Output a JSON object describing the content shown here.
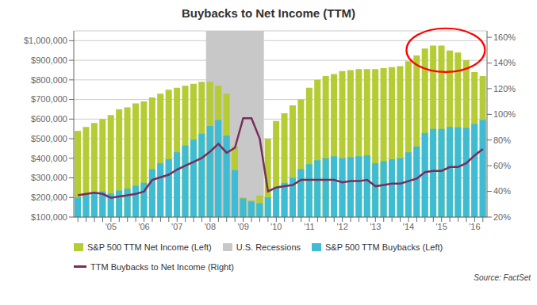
{
  "chart_data": {
    "type": "bar",
    "title": "Buybacks to Net Income (TTM)",
    "source": "Source: FactSet",
    "categories": [
      null,
      null,
      null,
      null,
      "'05",
      null,
      null,
      null,
      "'06",
      null,
      null,
      null,
      "'07",
      null,
      null,
      null,
      "'08",
      null,
      null,
      null,
      "'09",
      null,
      null,
      null,
      "'10",
      null,
      null,
      null,
      "'11",
      null,
      null,
      null,
      "'12",
      null,
      null,
      null,
      "'13",
      null,
      null,
      null,
      "'14",
      null,
      null,
      null,
      "'15",
      null,
      null,
      null,
      "'16",
      null
    ],
    "series": [
      {
        "name": "S&P 500 TTM Net Income (Left)",
        "type": "bar",
        "color": "#b5cc34",
        "values": [
          540000,
          560000,
          580000,
          600000,
          620000,
          650000,
          660000,
          680000,
          690000,
          710000,
          730000,
          750000,
          760000,
          770000,
          780000,
          790000,
          790000,
          770000,
          730000,
          460000,
          200000,
          185000,
          210000,
          500000,
          590000,
          630000,
          670000,
          700000,
          760000,
          800000,
          820000,
          830000,
          845000,
          850000,
          855000,
          855000,
          855000,
          860000,
          865000,
          870000,
          895000,
          925000,
          960000,
          975000,
          975000,
          950000,
          940000,
          900000,
          840000,
          820000
        ]
      },
      {
        "name": "S&P 500 TTM Buybacks (Left)",
        "type": "bar",
        "color": "#3dbcd4",
        "values": [
          200000,
          215000,
          225000,
          230000,
          220000,
          235000,
          245000,
          260000,
          275000,
          345000,
          375000,
          395000,
          430000,
          465000,
          495000,
          525000,
          565000,
          595000,
          515000,
          340000,
          195000,
          180000,
          170000,
          200000,
          255000,
          275000,
          300000,
          345000,
          370000,
          390000,
          400000,
          410000,
          400000,
          405000,
          410000,
          415000,
          375000,
          385000,
          395000,
          400000,
          430000,
          460000,
          530000,
          550000,
          550000,
          560000,
          558000,
          555000,
          575000,
          595000
        ]
      },
      {
        "name": "TTM Buybacks to Net Income (Right)",
        "type": "line",
        "color": "#7b2d5a",
        "axis": "y2",
        "values": [
          37,
          38,
          39,
          38,
          35,
          36,
          37,
          38,
          40,
          49,
          51,
          53,
          57,
          60,
          63,
          66,
          71,
          77,
          70,
          74,
          97,
          97,
          81,
          40,
          43,
          44,
          45,
          49,
          49,
          49,
          49,
          49,
          47,
          48,
          48,
          49,
          44,
          45,
          46,
          46,
          48,
          50,
          55,
          56,
          56,
          59,
          59,
          62,
          68,
          73
        ]
      }
    ],
    "ylim": [
      100000,
      1050000
    ],
    "yticks": [
      {
        "value": 100000,
        "label": "$100,000"
      },
      {
        "value": 200000,
        "label": "$200,000"
      },
      {
        "value": 300000,
        "label": "$300,000"
      },
      {
        "value": 400000,
        "label": "$400,000"
      },
      {
        "value": 500000,
        "label": "$500,000"
      },
      {
        "value": 600000,
        "label": "$600,000"
      },
      {
        "value": 700000,
        "label": "$700,000"
      },
      {
        "value": 800000,
        "label": "$800,000"
      },
      {
        "value": 900000,
        "label": "$900,000"
      },
      {
        "value": 1000000,
        "label": "$1,000,000"
      }
    ],
    "y2lim": [
      20,
      165
    ],
    "y2ticks": [
      {
        "value": 20,
        "label": "20%"
      },
      {
        "value": 40,
        "label": "40%"
      },
      {
        "value": 60,
        "label": "60%"
      },
      {
        "value": 80,
        "label": "80%"
      },
      {
        "value": 100,
        "label": "100%"
      },
      {
        "value": 120,
        "label": "120%"
      },
      {
        "value": 140,
        "label": "140%"
      },
      {
        "value": 160,
        "label": "160%"
      }
    ],
    "grid": true,
    "legend": "bottom",
    "recession": {
      "name": "U.S. Recessions",
      "color": "#c8c8c8",
      "start": 16,
      "end": 22
    },
    "ellipse": {
      "x": 44.5,
      "y": 150,
      "width": 9.5,
      "height": 34,
      "color": "red"
    }
  }
}
